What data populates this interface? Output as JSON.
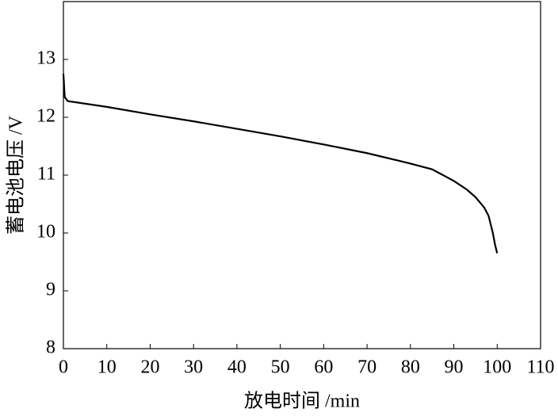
{
  "chart_data": {
    "type": "line",
    "x_label": "放电时间 /min",
    "y_label": "蓄电池电压 /V",
    "x": [
      0,
      0.3,
      1,
      10,
      20,
      30,
      40,
      50,
      60,
      70,
      80,
      85,
      90,
      93,
      95,
      97,
      98,
      99,
      99.5,
      100
    ],
    "series": [
      {
        "color": "#000000",
        "values": [
          12.75,
          12.35,
          12.28,
          12.18,
          12.05,
          11.93,
          11.8,
          11.67,
          11.53,
          11.38,
          11.2,
          11.1,
          10.9,
          10.75,
          10.62,
          10.44,
          10.3,
          10.0,
          9.8,
          9.65
        ]
      }
    ],
    "xlim": [
      0,
      110
    ],
    "xticks": [
      0,
      10,
      20,
      30,
      40,
      50,
      60,
      70,
      80,
      90,
      100,
      110
    ],
    "ylim": [
      8,
      14
    ],
    "yticks": [
      8,
      9,
      10,
      11,
      12,
      13
    ]
  }
}
